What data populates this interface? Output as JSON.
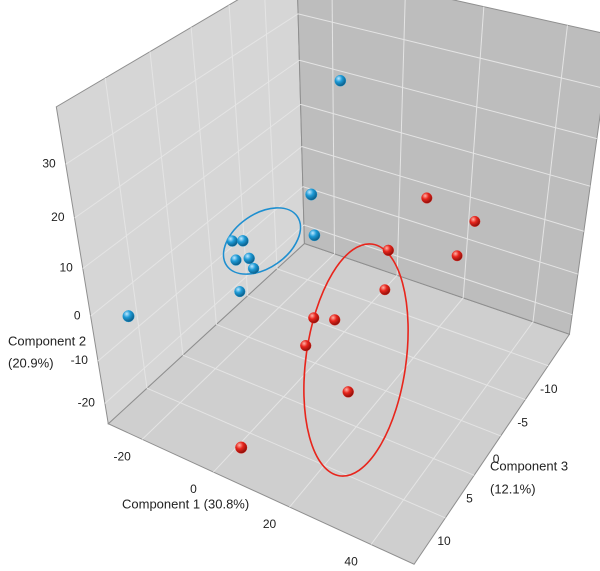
{
  "chart_data": {
    "type": "scatter3d",
    "xlabel": "Component 1 (30.8%)",
    "ylabel": [
      "Component 2",
      "(20.9%)"
    ],
    "zlabel": [
      "Component 3",
      "(12.1%)"
    ],
    "xlim": [
      -30,
      50
    ],
    "ylim": [
      -25,
      40
    ],
    "zlim": [
      -15,
      15
    ],
    "xticks": [
      -20,
      0,
      20,
      40
    ],
    "yticks": [
      -20,
      -10,
      0,
      10,
      20,
      30
    ],
    "zticks": [
      -10,
      -5,
      0,
      5,
      10
    ],
    "grid": true,
    "series": [
      {
        "color": "#1e9bd7",
        "x": [
          -5.9,
          0,
          -18.6,
          -15.5,
          0.6,
          -17.9,
          -14,
          -12.9,
          -17.4,
          -27.2
        ],
        "y": [
          27,
          13.8,
          1.4,
          2.3,
          5.3,
          -2.7,
          -1.2,
          -3.2,
          -9.9,
          -3.7
        ],
        "z": [
          -8,
          0,
          2,
          2,
          0,
          2,
          2,
          2,
          2,
          12
        ]
      },
      {
        "color": "#e8251c",
        "x": [
          14.8,
          25.3,
          12.2,
          23.7,
          11.5,
          -0.1,
          5.8,
          1.1,
          14.5,
          3.8
        ],
        "y": [
          4.6,
          -0.5,
          -1.5,
          -6.3,
          -10.9,
          -13.8,
          -12.4,
          -17,
          -22,
          -21.4
        ],
        "z": [
          -10,
          -12,
          -5,
          -10,
          -5,
          0,
          0,
          2,
          3,
          13
        ]
      }
    ]
  }
}
